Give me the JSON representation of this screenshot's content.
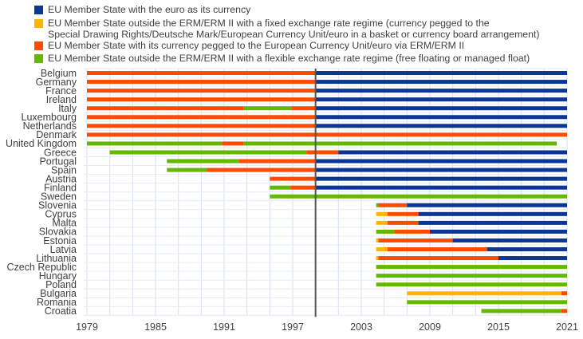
{
  "chart_data": {
    "type": "bar",
    "subtype": "timeline",
    "colors": {
      "euro": "#0B3693",
      "fixed": "#FFB400",
      "erm": "#FF4B00",
      "flexible": "#65B800"
    },
    "legend": [
      {
        "key": "euro",
        "label": "EU Member State with the euro as its currency"
      },
      {
        "key": "fixed",
        "label": "EU Member State outside the ERM/ERM II with a fixed exchange rate regime (currency pegged to the",
        "label2": "Special Drawing Rights/Deutsche Mark/European Currency Unit/euro in a basket or currency board arrangement)"
      },
      {
        "key": "erm",
        "label": "EU Member State with its currency pegged to the European Currency Unit/euro via ERM/ERM II"
      },
      {
        "key": "flexible",
        "label": "EU Member State outside the ERM/ERM II with a flexible exchange rate regime (free floating or managed float)"
      }
    ],
    "xlim": [
      1979,
      2021
    ],
    "xticks": [
      "1979",
      "1985",
      "1991",
      "1997",
      "2003",
      "2009",
      "2015",
      "2021"
    ],
    "reference_line": 1999,
    "countries": [
      {
        "name": "Belgium",
        "segments": [
          [
            1979,
            1999,
            "erm"
          ],
          [
            1999,
            2021,
            "euro"
          ]
        ]
      },
      {
        "name": "Germany",
        "segments": [
          [
            1979,
            1999,
            "erm"
          ],
          [
            1999,
            2021,
            "euro"
          ]
        ]
      },
      {
        "name": "France",
        "segments": [
          [
            1979,
            1999,
            "erm"
          ],
          [
            1999,
            2021,
            "euro"
          ]
        ]
      },
      {
        "name": "Ireland",
        "segments": [
          [
            1979,
            1999,
            "erm"
          ],
          [
            1999,
            2021,
            "euro"
          ]
        ]
      },
      {
        "name": "Italy",
        "segments": [
          [
            1979,
            1992.7,
            "erm"
          ],
          [
            1992.7,
            1996.9,
            "flexible"
          ],
          [
            1996.9,
            1999,
            "erm"
          ],
          [
            1999,
            2021,
            "euro"
          ]
        ]
      },
      {
        "name": "Luxembourg",
        "segments": [
          [
            1979,
            1999,
            "erm"
          ],
          [
            1999,
            2021,
            "euro"
          ]
        ]
      },
      {
        "name": "Netherlands",
        "segments": [
          [
            1979,
            1999,
            "erm"
          ],
          [
            1999,
            2021,
            "euro"
          ]
        ]
      },
      {
        "name": "Denmark",
        "segments": [
          [
            1979,
            2021,
            "erm"
          ]
        ]
      },
      {
        "name": "United Kingdom",
        "segments": [
          [
            1979,
            1990.8,
            "flexible"
          ],
          [
            1990.8,
            1992.7,
            "erm"
          ],
          [
            1992.7,
            2020.1,
            "flexible"
          ]
        ]
      },
      {
        "name": "Greece",
        "segments": [
          [
            1981,
            1998.2,
            "flexible"
          ],
          [
            1998.2,
            2001,
            "erm"
          ],
          [
            2001,
            2021,
            "euro"
          ]
        ]
      },
      {
        "name": "Portugal",
        "segments": [
          [
            1986,
            1992.3,
            "flexible"
          ],
          [
            1992.3,
            1999,
            "erm"
          ],
          [
            1999,
            2021,
            "euro"
          ]
        ]
      },
      {
        "name": "Spain",
        "segments": [
          [
            1986,
            1989.5,
            "flexible"
          ],
          [
            1989.5,
            1999,
            "erm"
          ],
          [
            1999,
            2021,
            "euro"
          ]
        ]
      },
      {
        "name": "Austria",
        "segments": [
          [
            1995,
            1999,
            "erm"
          ],
          [
            1999,
            2021,
            "euro"
          ]
        ]
      },
      {
        "name": "Finland",
        "segments": [
          [
            1995,
            1996.8,
            "flexible"
          ],
          [
            1996.8,
            1999,
            "erm"
          ],
          [
            1999,
            2021,
            "euro"
          ]
        ]
      },
      {
        "name": "Sweden",
        "segments": [
          [
            1995,
            2021,
            "flexible"
          ]
        ]
      },
      {
        "name": "Slovenia",
        "segments": [
          [
            2004.3,
            2004.5,
            "flexible"
          ],
          [
            2004.5,
            2007,
            "erm"
          ],
          [
            2007,
            2021,
            "euro"
          ]
        ]
      },
      {
        "name": "Cyprus",
        "segments": [
          [
            2004.3,
            2005.3,
            "fixed"
          ],
          [
            2005.3,
            2008,
            "erm"
          ],
          [
            2008,
            2021,
            "euro"
          ]
        ]
      },
      {
        "name": "Malta",
        "segments": [
          [
            2004.3,
            2005.3,
            "fixed"
          ],
          [
            2005.3,
            2008,
            "erm"
          ],
          [
            2008,
            2021,
            "euro"
          ]
        ]
      },
      {
        "name": "Slovakia",
        "segments": [
          [
            2004.3,
            2005.9,
            "flexible"
          ],
          [
            2005.9,
            2009,
            "erm"
          ],
          [
            2009,
            2021,
            "euro"
          ]
        ]
      },
      {
        "name": "Estonia",
        "segments": [
          [
            2004.3,
            2004.5,
            "fixed"
          ],
          [
            2004.5,
            2011,
            "erm"
          ],
          [
            2011,
            2021,
            "euro"
          ]
        ]
      },
      {
        "name": "Latvia",
        "segments": [
          [
            2004.3,
            2005.3,
            "fixed"
          ],
          [
            2005.3,
            2014,
            "erm"
          ],
          [
            2014,
            2021,
            "euro"
          ]
        ]
      },
      {
        "name": "Lithuania",
        "segments": [
          [
            2004.3,
            2004.5,
            "fixed"
          ],
          [
            2004.5,
            2015,
            "erm"
          ],
          [
            2015,
            2021,
            "euro"
          ]
        ]
      },
      {
        "name": "Czech Republic",
        "segments": [
          [
            2004.3,
            2021,
            "flexible"
          ]
        ]
      },
      {
        "name": "Hungary",
        "segments": [
          [
            2004.3,
            2021,
            "flexible"
          ]
        ]
      },
      {
        "name": "Poland",
        "segments": [
          [
            2004.3,
            2021,
            "flexible"
          ]
        ]
      },
      {
        "name": "Bulgaria",
        "segments": [
          [
            2007,
            2020.5,
            "fixed"
          ],
          [
            2020.5,
            2021,
            "erm"
          ]
        ]
      },
      {
        "name": "Romania",
        "segments": [
          [
            2007,
            2021,
            "flexible"
          ]
        ]
      },
      {
        "name": "Croatia",
        "segments": [
          [
            2013.5,
            2020.5,
            "flexible"
          ],
          [
            2020.5,
            2021,
            "erm"
          ]
        ]
      }
    ]
  }
}
